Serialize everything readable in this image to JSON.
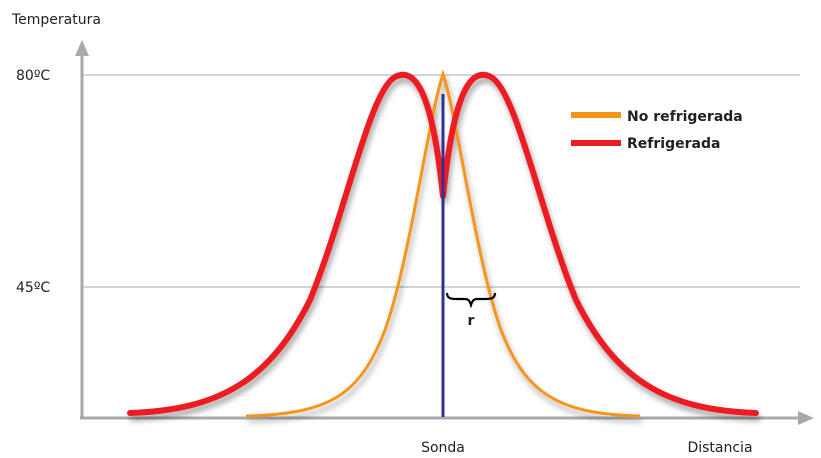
{
  "chart_data": {
    "type": "line",
    "ylabel": "Temperatura",
    "xlabel": "Distancia",
    "y_ticks": [
      "80ºC",
      "45ºC"
    ],
    "x_ticks": [
      "Sonda"
    ],
    "annotation": "r",
    "grid": "horizontal lines at 80ºC and 45ºC",
    "legend_position": "top-right",
    "series": [
      {
        "name": "No refrigerada",
        "color": "#f7941d",
        "shape": "single sharp peak at the probe reaching 80ºC"
      },
      {
        "name": "Refrigerada",
        "color": "#ec1c24",
        "shape": "two peaks at 80ºC either side of the probe with a dip at the probe"
      }
    ]
  },
  "colors": {
    "axis": "#a7a9ac",
    "grid": "#a7a9ac",
    "probe": "#2e3192"
  }
}
